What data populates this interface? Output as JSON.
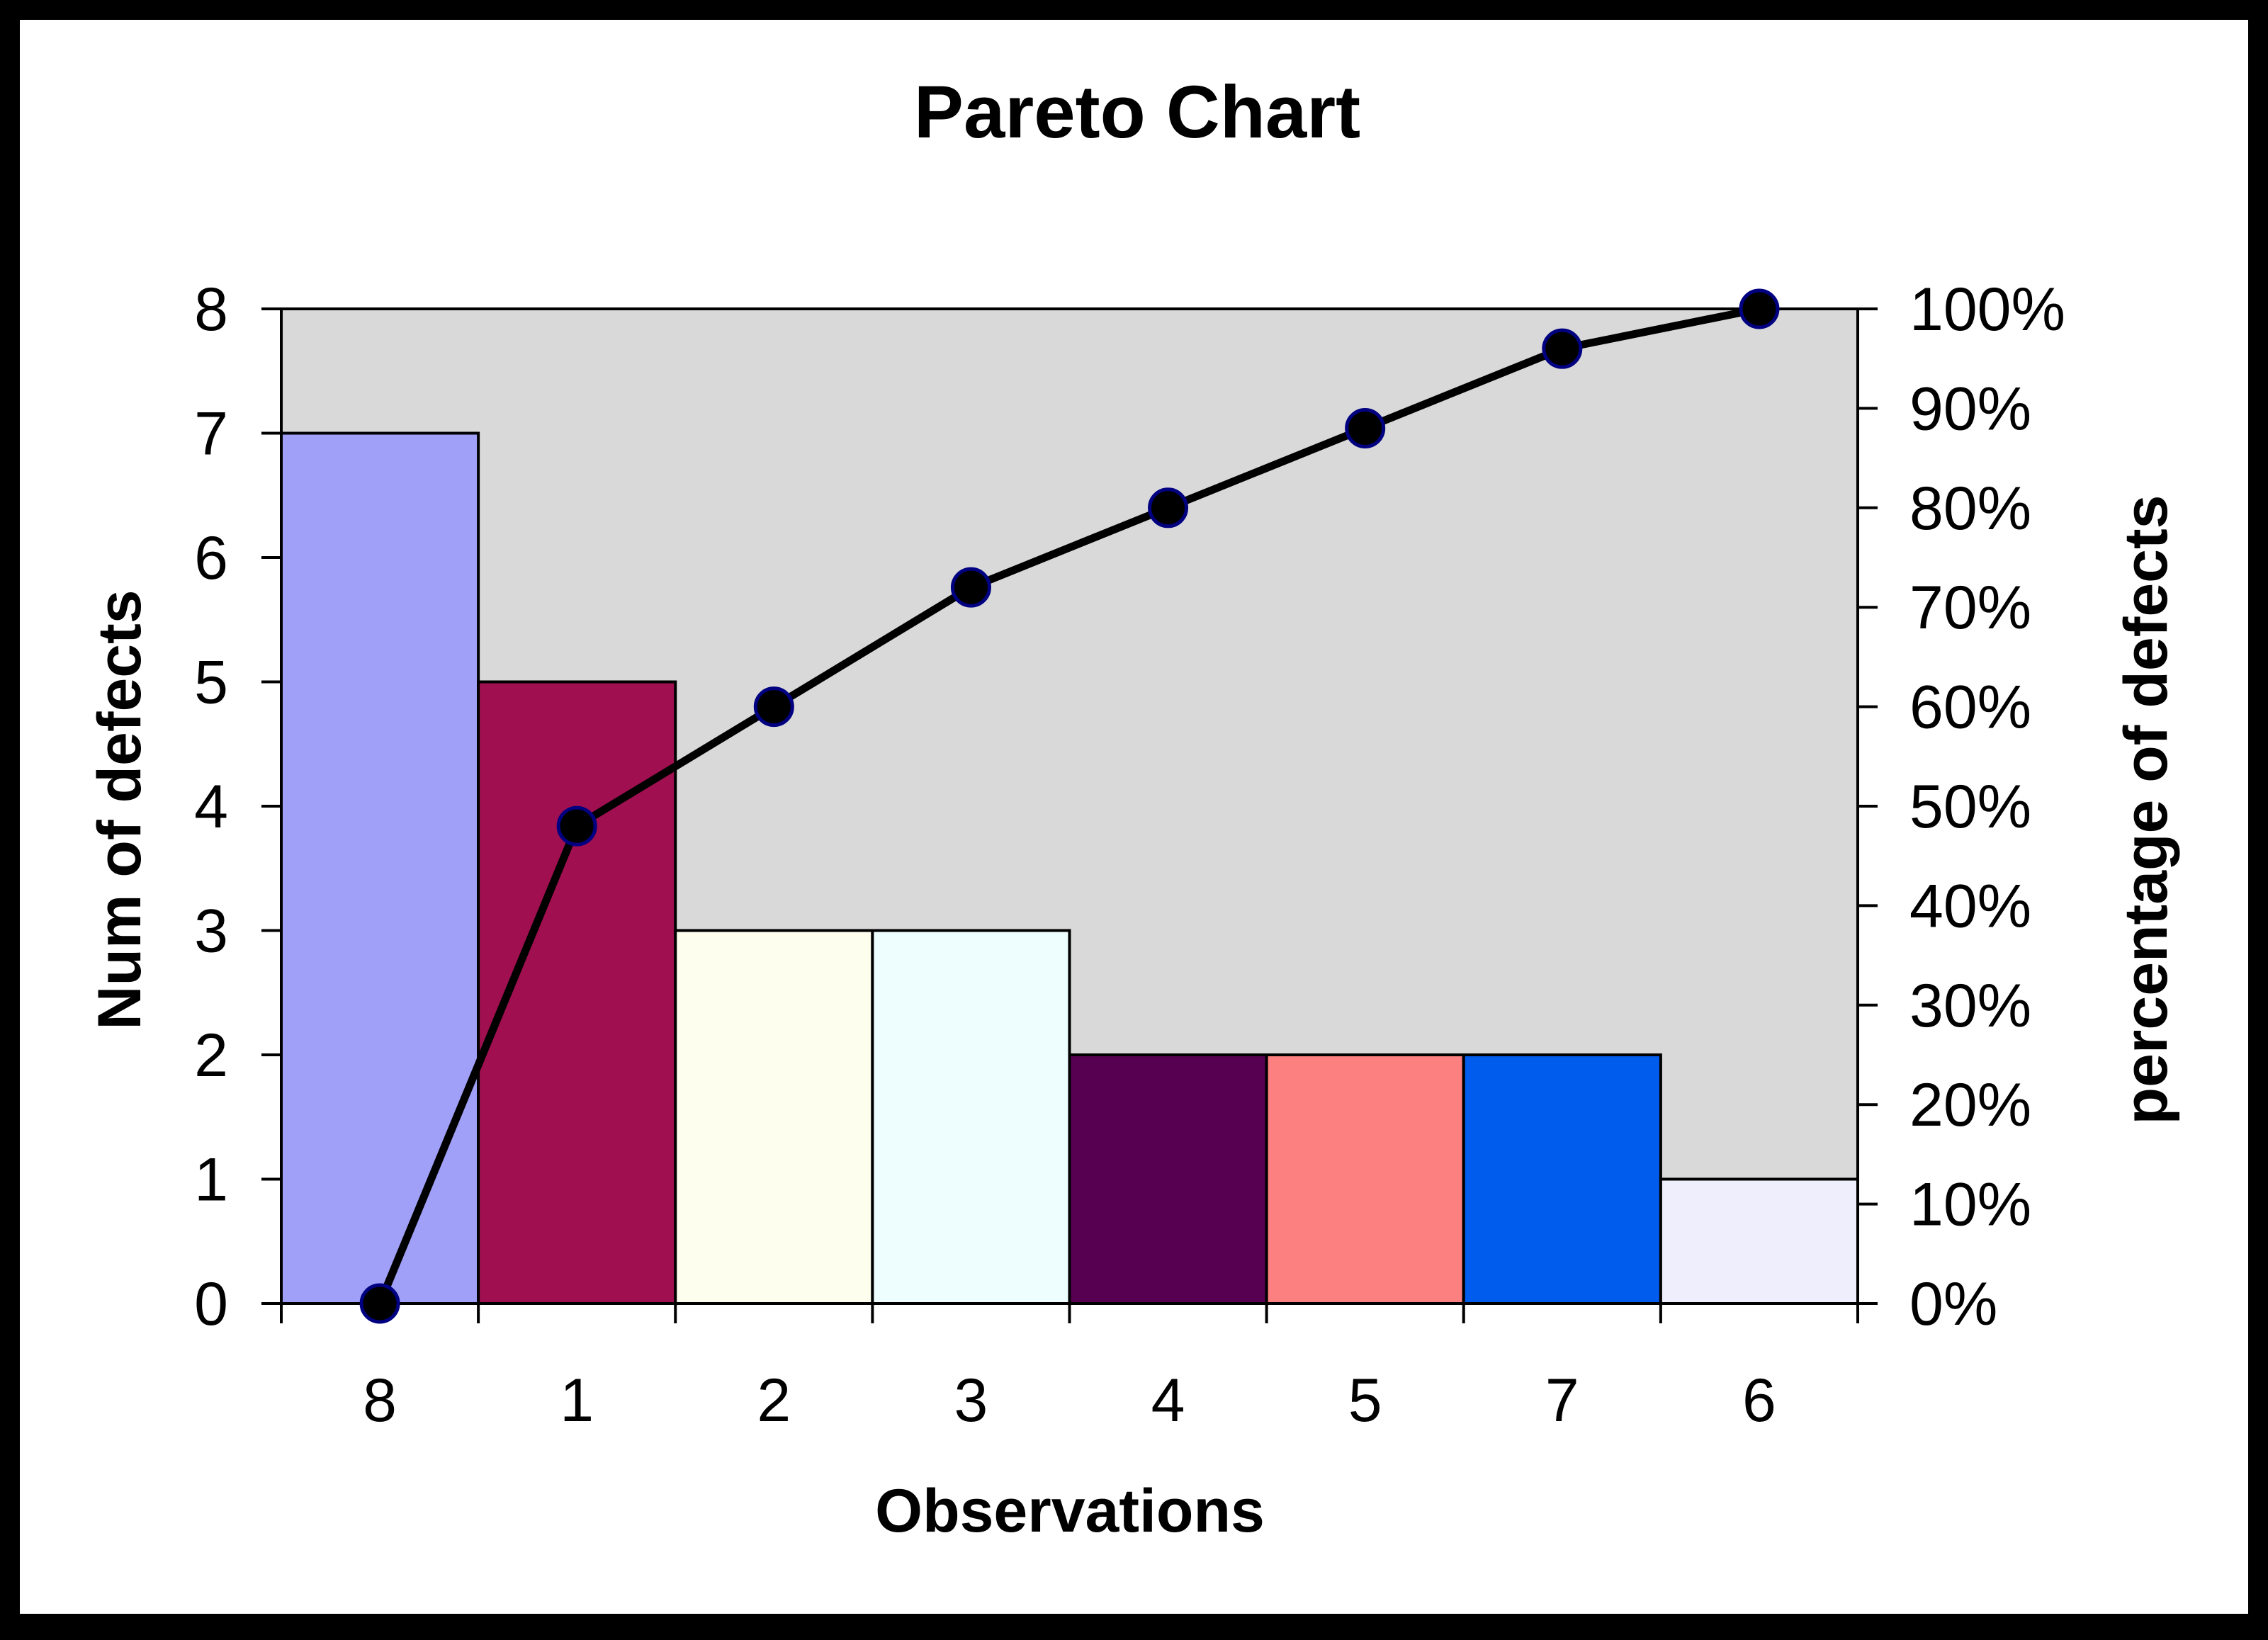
{
  "chart_data": {
    "type": "bar",
    "title": "Pareto Chart",
    "xlabel": "Observations",
    "ylabel": "Num of defects",
    "y2label": "percentage of defects",
    "categories": [
      "8",
      "1",
      "2",
      "3",
      "4",
      "5",
      "7",
      "6"
    ],
    "series": [
      {
        "type": "bar",
        "values": [
          7,
          5,
          3,
          3,
          2,
          2,
          2,
          1
        ],
        "colors": [
          "#A0A0F8",
          "#A00F50",
          "#FEFEEE",
          "#EEFEFE",
          "#570052",
          "#FC8080",
          "#005CEC",
          "#EEEEFC"
        ]
      },
      {
        "type": "line",
        "axis": "right",
        "values": [
          0,
          48,
          60,
          72,
          80,
          88,
          96,
          100
        ]
      }
    ],
    "ylim": [
      0,
      8
    ],
    "yticks": [
      "0",
      "1",
      "2",
      "3",
      "4",
      "5",
      "6",
      "7",
      "8"
    ],
    "y2lim": [
      0,
      100
    ],
    "y2ticks": [
      "0%",
      "10%",
      "20%",
      "30%",
      "40%",
      "50%",
      "60%",
      "70%",
      "80%",
      "90%",
      "100%"
    ],
    "plot_background": "#D9D9D9",
    "page_background": "#FFFFFF",
    "frame_color": "#000000",
    "marker_color": "#000000",
    "marker_edge_color": "#000080",
    "grid": false,
    "legend": "none"
  }
}
